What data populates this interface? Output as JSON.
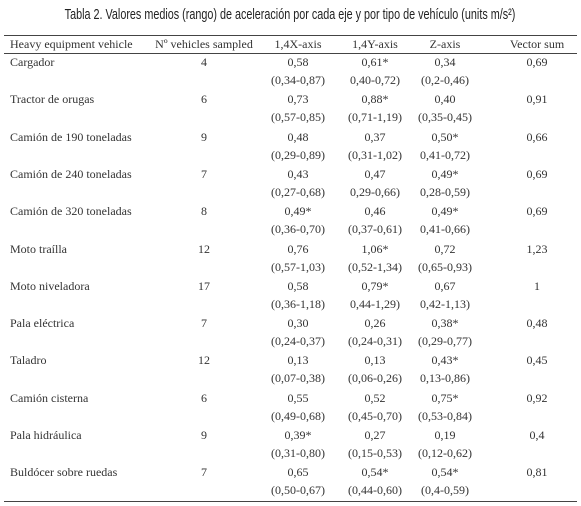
{
  "title": "Tabla 2. Valores medios (rango) de aceleración por cada eje y por tipo de vehículo (units m/s²)",
  "table": {
    "header": [
      "Heavy equipment vehicle",
      "Nº vehicles sampled",
      "1,4X-axis",
      "1,4Y-axis",
      "Z-axis",
      "Vector sum"
    ],
    "rows": [
      {
        "vehicle": "Cargador",
        "n": "4",
        "x": {
          "value": "0,58",
          "range": "(0,34-0,87)"
        },
        "y": {
          "value": "0,61*",
          "range": "0,40-0,72)"
        },
        "z": {
          "value": "0,34",
          "range": "(0,2-0,46)"
        },
        "vector": "0,69"
      },
      {
        "vehicle": "Tractor de orugas",
        "n": "6",
        "x": {
          "value": "0,73",
          "range": "(0,57-0,85)"
        },
        "y": {
          "value": "0,88*",
          "range": "(0,71-1,19)"
        },
        "z": {
          "value": "0,40",
          "range": "(0,35-0,45)"
        },
        "vector": "0,91"
      },
      {
        "vehicle": "Camión de 190 toneladas",
        "n": "9",
        "x": {
          "value": "0,48",
          "range": "(0,29-0,89)"
        },
        "y": {
          "value": "0,37",
          "range": "(0,31-1,02)"
        },
        "z": {
          "value": "0,50*",
          "range": "0,41-0,72)"
        },
        "vector": "0,66"
      },
      {
        "vehicle": "Camión de 240 toneladas",
        "n": "7",
        "x": {
          "value": "0,43",
          "range": "(0,27-0,68)"
        },
        "y": {
          "value": "0,47",
          "range": "0,29-0,66)"
        },
        "z": {
          "value": "0,49*",
          "range": "0,28-0,59)"
        },
        "vector": "0,69"
      },
      {
        "vehicle": "Camión de 320 toneladas",
        "n": "8",
        "x": {
          "value": "0,49*",
          "range": "(0,36-0,70)"
        },
        "y": {
          "value": "0,46",
          "range": "(0,37-0,61)"
        },
        "z": {
          "value": "0,49*",
          "range": "0,41-0,66)"
        },
        "vector": "0,69"
      },
      {
        "vehicle": "Moto traílla",
        "n": "12",
        "x": {
          "value": "0,76",
          "range": "(0,57-1,03)"
        },
        "y": {
          "value": "1,06*",
          "range": "(0,52-1,34)"
        },
        "z": {
          "value": "0,72",
          "range": "(0,65-0,93)"
        },
        "vector": "1,23"
      },
      {
        "vehicle": "Moto niveladora",
        "n": "17",
        "x": {
          "value": "0,58",
          "range": "(0,36-1,18)"
        },
        "y": {
          "value": "0,79*",
          "range": "0,44-1,29)"
        },
        "z": {
          "value": "0,67",
          "range": "0,42-1,13)"
        },
        "vector": "1"
      },
      {
        "vehicle": "Pala eléctrica",
        "n": "7",
        "x": {
          "value": "0,30",
          "range": "(0,24-0,37)"
        },
        "y": {
          "value": "0,26",
          "range": "(0,24-0,31)"
        },
        "z": {
          "value": "0,38*",
          "range": "(0,29-0,77)"
        },
        "vector": "0,48"
      },
      {
        "vehicle": "Taladro",
        "n": "12",
        "x": {
          "value": "0,13",
          "range": "(0,07-0,38)"
        },
        "y": {
          "value": "0,13",
          "range": "(0,06-0,26)"
        },
        "z": {
          "value": "0,43*",
          "range": "0,13-0,86)"
        },
        "vector": "0,45"
      },
      {
        "vehicle": "Camión cisterna",
        "n": "6",
        "x": {
          "value": "0,55",
          "range": "(0,49-0,68)"
        },
        "y": {
          "value": "0,52",
          "range": "(0,45-0,70)"
        },
        "z": {
          "value": "0,75*",
          "range": "(0,53-0,84)"
        },
        "vector": "0,92"
      },
      {
        "vehicle": "Pala hidráulica",
        "n": "9",
        "x": {
          "value": "0,39*",
          "range": "(0,31-0,80)"
        },
        "y": {
          "value": "0,27",
          "range": "(0,15-0,53)"
        },
        "z": {
          "value": "0,19",
          "range": "(0,12-0,62)"
        },
        "vector": "0,4"
      },
      {
        "vehicle": "Buldócer sobre ruedas",
        "n": "7",
        "x": {
          "value": "0,65",
          "range": "(0,50-0,67)"
        },
        "y": {
          "value": "0,54*",
          "range": "(0,44-0,60)"
        },
        "z": {
          "value": "0,54*",
          "range": "(0,4-0,59)"
        },
        "vector": "0,81"
      }
    ]
  }
}
